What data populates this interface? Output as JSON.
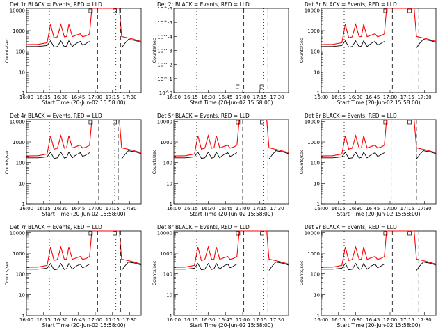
{
  "chart_data": {
    "type": "line",
    "title_suffix": "BLACK = Events, RED = LLD",
    "xlabel": "Start Time (20-Jun-02 15:58:00)",
    "ylabel": "Counts/sec",
    "x_tick_labels": [
      "16:00",
      "16:15",
      "16:30",
      "16:45",
      "17:00",
      "17:15",
      "17:30"
    ],
    "x_tick_minutes": [
      0,
      15,
      30,
      45,
      60,
      75,
      90
    ],
    "xlim_minutes": [
      0,
      100
    ],
    "ylim": [
      1,
      12000
    ],
    "ylim_small": [
      1,
      1e-06
    ],
    "y_tick_labels": [
      "1",
      "10",
      "100",
      "1000",
      "10000"
    ],
    "y_tick_labels_small": [
      "10^0",
      "10^-1",
      "10^-2",
      "10^-3",
      "10^-4",
      "10^-5",
      "10^-6"
    ],
    "colors": {
      "events": "#000000",
      "lld": "#ff0000"
    },
    "series_names": [
      "Events",
      "LLD"
    ],
    "event_minutes": [
      56,
      77
    ],
    "series": {
      "x": [
        0,
        10,
        18,
        21,
        24,
        27,
        30,
        33,
        35,
        37,
        40,
        42,
        44,
        47,
        49,
        51,
        53,
        55,
        57,
        59,
        62,
        65,
        68,
        70,
        72,
        73,
        74,
        75,
        76,
        77,
        78,
        80,
        81,
        83,
        86,
        89,
        92,
        95,
        100
      ],
      "events": [
        170,
        170,
        190,
        320,
        160,
        170,
        320,
        165,
        180,
        320,
        170,
        210,
        250,
        300,
        200,
        220,
        260,
        300,
        null,
        null,
        null,
        null,
        null,
        null,
        null,
        null,
        null,
        null,
        null,
        null,
        null,
        null,
        null,
        150,
        250,
        380,
        350,
        330,
        270
      ],
      "lld": [
        210,
        215,
        260,
        2000,
        450,
        500,
        2000,
        500,
        520,
        2000,
        510,
        560,
        620,
        700,
        510,
        540,
        600,
        700,
        12000,
        12000,
        12000,
        12000,
        12000,
        12000,
        12000,
        12000,
        12000,
        12000,
        12000,
        12000,
        12000,
        12000,
        12000,
        520,
        480,
        440,
        400,
        360,
        300
      ]
    },
    "panels": [
      {
        "title": "Det 1r",
        "dashed": [
          62,
          82
        ],
        "dotted": [
          20,
          78
        ]
      },
      {
        "title": "Det 2r",
        "dashed": [
          61,
          82
        ],
        "dotted": [
          20,
          78
        ],
        "empty": true
      },
      {
        "title": "Det 3r",
        "dashed": [
          62,
          85
        ],
        "dotted": [
          20,
          79
        ]
      },
      {
        "title": "Det 4r",
        "dashed": [
          63,
          80
        ],
        "dotted": [
          20,
          77
        ]
      },
      {
        "title": "Det 5r",
        "dashed": [
          60,
          82
        ],
        "dotted": [
          20,
          78
        ]
      },
      {
        "title": "Det 6r",
        "dashed": [
          61,
          83
        ],
        "dotted": [
          20,
          79
        ]
      },
      {
        "title": "Det 7r",
        "dashed": [
          62,
          82
        ],
        "dotted": [
          20,
          78
        ]
      },
      {
        "title": "Det 8r",
        "dashed": [
          61,
          82
        ],
        "dotted": [
          20,
          78
        ]
      },
      {
        "title": "Det 9r",
        "dashed": [
          62,
          85
        ],
        "dotted": [
          20,
          79
        ]
      }
    ]
  }
}
